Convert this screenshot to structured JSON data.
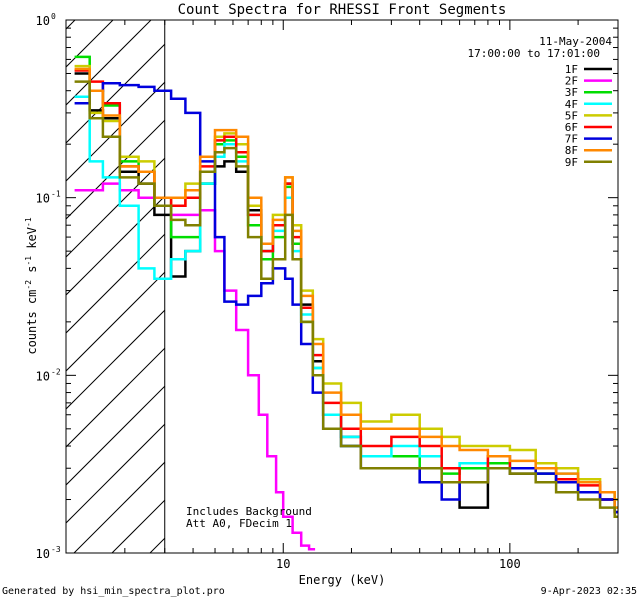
{
  "chart_data": {
    "type": "line",
    "title": "Count Spectra for RHESSI Front Segments",
    "xlabel": "Energy (keV)",
    "ylabel": "counts cm",
    "ylabel_sup1": "-2",
    "ylabel_mid": " s",
    "ylabel_sup2": "-1",
    "ylabel_end": " keV",
    "ylabel_sup3": "-1",
    "x_scale": "log",
    "y_scale": "log",
    "xlim": [
      1.1,
      300
    ],
    "ylim": [
      0.001,
      1
    ],
    "x_ticks": [
      {
        "v": 10,
        "label": "10"
      },
      {
        "v": 100,
        "label": "100"
      }
    ],
    "y_ticks": [
      {
        "v": 1,
        "label": "10",
        "exp": "0"
      },
      {
        "v": 0.1,
        "label": "10",
        "exp": "-1"
      },
      {
        "v": 0.01,
        "label": "10",
        "exp": "-2"
      },
      {
        "v": 0.001,
        "label": "10",
        "exp": "-3"
      }
    ],
    "hatch_upper_energy": 3,
    "date": "11-May-2004",
    "time_range": "17:00:00 to 17:01:00",
    "annotations": [
      "Includes Background",
      "Att A0, FDecim 1"
    ],
    "series": [
      {
        "name": "1F",
        "color": "#000000",
        "values": [
          [
            1.2,
            0.5
          ],
          [
            1.4,
            0.31
          ],
          [
            1.6,
            0.28
          ],
          [
            1.9,
            0.14
          ],
          [
            2.3,
            0.12
          ],
          [
            2.7,
            0.08
          ],
          [
            3.2,
            0.036
          ],
          [
            3.7,
            0.05
          ],
          [
            4.3,
            0.12
          ],
          [
            5.0,
            0.15
          ],
          [
            5.5,
            0.16
          ],
          [
            6.2,
            0.14
          ],
          [
            7.0,
            0.085
          ],
          [
            8.0,
            0.05
          ],
          [
            9.0,
            0.07
          ],
          [
            10.2,
            0.12
          ],
          [
            11.0,
            0.055
          ],
          [
            12.0,
            0.025
          ],
          [
            13.5,
            0.012
          ],
          [
            15,
            0.006
          ],
          [
            18,
            0.0045
          ],
          [
            22,
            0.003
          ],
          [
            30,
            0.003
          ],
          [
            40,
            0.0025
          ],
          [
            50,
            0.0025
          ],
          [
            60,
            0.0018
          ],
          [
            80,
            0.003
          ],
          [
            100,
            0.0028
          ],
          [
            130,
            0.0028
          ],
          [
            160,
            0.0025
          ],
          [
            200,
            0.0022
          ],
          [
            250,
            0.002
          ],
          [
            290,
            0.0017
          ]
        ]
      },
      {
        "name": "2F",
        "color": "#ff00ff",
        "values": [
          [
            1.2,
            0.11
          ],
          [
            1.4,
            0.11
          ],
          [
            1.6,
            0.12
          ],
          [
            1.9,
            0.11
          ],
          [
            2.3,
            0.1
          ],
          [
            2.7,
            0.09
          ],
          [
            3.2,
            0.08
          ],
          [
            3.7,
            0.08
          ],
          [
            4.3,
            0.085
          ],
          [
            5.0,
            0.05
          ],
          [
            5.5,
            0.03
          ],
          [
            6.2,
            0.018
          ],
          [
            7.0,
            0.01
          ],
          [
            7.8,
            0.006
          ],
          [
            8.5,
            0.0035
          ],
          [
            9.3,
            0.0022
          ],
          [
            10.0,
            0.0016
          ],
          [
            11.0,
            0.0013
          ],
          [
            12,
            0.0011
          ],
          [
            13,
            0.00105
          ]
        ]
      },
      {
        "name": "3F",
        "color": "#00dd00",
        "values": [
          [
            1.2,
            0.62
          ],
          [
            1.4,
            0.4
          ],
          [
            1.6,
            0.33
          ],
          [
            1.9,
            0.16
          ],
          [
            2.3,
            0.14
          ],
          [
            2.7,
            0.09
          ],
          [
            3.2,
            0.06
          ],
          [
            3.7,
            0.06
          ],
          [
            4.3,
            0.12
          ],
          [
            5.0,
            0.2
          ],
          [
            5.5,
            0.21
          ],
          [
            6.2,
            0.17
          ],
          [
            7.0,
            0.07
          ],
          [
            8.0,
            0.045
          ],
          [
            9.0,
            0.06
          ],
          [
            10.2,
            0.115
          ],
          [
            11.0,
            0.055
          ],
          [
            12,
            0.02
          ],
          [
            13.5,
            0.011
          ],
          [
            15,
            0.006
          ],
          [
            18,
            0.004
          ],
          [
            22,
            0.0035
          ],
          [
            30,
            0.0035
          ],
          [
            40,
            0.003
          ],
          [
            50,
            0.0028
          ],
          [
            60,
            0.003
          ],
          [
            80,
            0.0032
          ],
          [
            100,
            0.003
          ],
          [
            130,
            0.0028
          ],
          [
            160,
            0.0025
          ],
          [
            200,
            0.0025
          ],
          [
            250,
            0.0022
          ],
          [
            290,
            0.0018
          ]
        ]
      },
      {
        "name": "4F",
        "color": "#00ffff",
        "values": [
          [
            1.2,
            0.37
          ],
          [
            1.4,
            0.16
          ],
          [
            1.6,
            0.13
          ],
          [
            1.9,
            0.09
          ],
          [
            2.3,
            0.04
          ],
          [
            2.7,
            0.035
          ],
          [
            3.2,
            0.045
          ],
          [
            3.7,
            0.05
          ],
          [
            4.3,
            0.12
          ],
          [
            5.0,
            0.17
          ],
          [
            5.5,
            0.2
          ],
          [
            6.2,
            0.16
          ],
          [
            7.0,
            0.08
          ],
          [
            8.0,
            0.05
          ],
          [
            9.0,
            0.065
          ],
          [
            10.2,
            0.1
          ],
          [
            11.0,
            0.05
          ],
          [
            12,
            0.022
          ],
          [
            13.5,
            0.011
          ],
          [
            15,
            0.006
          ],
          [
            18,
            0.0045
          ],
          [
            22,
            0.0035
          ],
          [
            30,
            0.004
          ],
          [
            40,
            0.0035
          ],
          [
            50,
            0.003
          ],
          [
            60,
            0.0032
          ],
          [
            80,
            0.0035
          ],
          [
            100,
            0.003
          ],
          [
            130,
            0.003
          ],
          [
            160,
            0.0028
          ],
          [
            200,
            0.0025
          ],
          [
            250,
            0.0022
          ],
          [
            290,
            0.0018
          ]
        ]
      },
      {
        "name": "5F",
        "color": "#cccc00",
        "values": [
          [
            1.2,
            0.55
          ],
          [
            1.4,
            0.3
          ],
          [
            1.6,
            0.27
          ],
          [
            1.9,
            0.17
          ],
          [
            2.3,
            0.16
          ],
          [
            2.7,
            0.1
          ],
          [
            3.2,
            0.09
          ],
          [
            3.7,
            0.12
          ],
          [
            4.3,
            0.17
          ],
          [
            5.0,
            0.22
          ],
          [
            5.5,
            0.23
          ],
          [
            6.2,
            0.2
          ],
          [
            7.0,
            0.09
          ],
          [
            8.0,
            0.055
          ],
          [
            9.0,
            0.08
          ],
          [
            10.2,
            0.13
          ],
          [
            11.0,
            0.07
          ],
          [
            12,
            0.03
          ],
          [
            13.5,
            0.016
          ],
          [
            15,
            0.009
          ],
          [
            18,
            0.007
          ],
          [
            22,
            0.0055
          ],
          [
            30,
            0.006
          ],
          [
            40,
            0.005
          ],
          [
            50,
            0.0045
          ],
          [
            60,
            0.004
          ],
          [
            80,
            0.004
          ],
          [
            100,
            0.0038
          ],
          [
            130,
            0.0032
          ],
          [
            160,
            0.003
          ],
          [
            200,
            0.0026
          ],
          [
            250,
            0.0022
          ],
          [
            290,
            0.002
          ]
        ]
      },
      {
        "name": "6F",
        "color": "#ff0000",
        "values": [
          [
            1.2,
            0.52
          ],
          [
            1.4,
            0.45
          ],
          [
            1.6,
            0.34
          ],
          [
            1.9,
            0.15
          ],
          [
            2.3,
            0.14
          ],
          [
            2.7,
            0.1
          ],
          [
            3.2,
            0.09
          ],
          [
            3.7,
            0.1
          ],
          [
            4.3,
            0.15
          ],
          [
            5.0,
            0.21
          ],
          [
            5.5,
            0.22
          ],
          [
            6.2,
            0.18
          ],
          [
            7.0,
            0.08
          ],
          [
            8.0,
            0.05
          ],
          [
            9.0,
            0.07
          ],
          [
            10.2,
            0.12
          ],
          [
            11.0,
            0.06
          ],
          [
            12,
            0.024
          ],
          [
            13.5,
            0.013
          ],
          [
            15,
            0.007
          ],
          [
            18,
            0.005
          ],
          [
            22,
            0.004
          ],
          [
            30,
            0.0045
          ],
          [
            40,
            0.004
          ],
          [
            50,
            0.003
          ],
          [
            60,
            0.0025
          ],
          [
            80,
            0.0035
          ],
          [
            100,
            0.003
          ],
          [
            130,
            0.003
          ],
          [
            160,
            0.0026
          ],
          [
            200,
            0.0024
          ],
          [
            250,
            0.002
          ],
          [
            290,
            0.0017
          ]
        ]
      },
      {
        "name": "7F",
        "color": "#0000dd",
        "values": [
          [
            1.2,
            0.34
          ],
          [
            1.4,
            0.4
          ],
          [
            1.6,
            0.44
          ],
          [
            1.9,
            0.43
          ],
          [
            2.3,
            0.42
          ],
          [
            2.7,
            0.4
          ],
          [
            3.2,
            0.36
          ],
          [
            3.7,
            0.3
          ],
          [
            4.3,
            0.16
          ],
          [
            5.0,
            0.06
          ],
          [
            5.5,
            0.026
          ],
          [
            6.2,
            0.025
          ],
          [
            7.0,
            0.028
          ],
          [
            8.0,
            0.033
          ],
          [
            9.0,
            0.04
          ],
          [
            10.2,
            0.035
          ],
          [
            11.0,
            0.025
          ],
          [
            12,
            0.015
          ],
          [
            13.5,
            0.008
          ],
          [
            15,
            0.005
          ],
          [
            18,
            0.004
          ],
          [
            22,
            0.003
          ],
          [
            30,
            0.003
          ],
          [
            40,
            0.0025
          ],
          [
            50,
            0.002
          ],
          [
            60,
            0.0025
          ],
          [
            80,
            0.003
          ],
          [
            100,
            0.003
          ],
          [
            130,
            0.0028
          ],
          [
            160,
            0.0025
          ],
          [
            200,
            0.0022
          ],
          [
            250,
            0.002
          ],
          [
            290,
            0.0017
          ]
        ]
      },
      {
        "name": "8F",
        "color": "#ff8800",
        "values": [
          [
            1.2,
            0.53
          ],
          [
            1.4,
            0.4
          ],
          [
            1.6,
            0.29
          ],
          [
            1.9,
            0.15
          ],
          [
            2.3,
            0.14
          ],
          [
            2.7,
            0.1
          ],
          [
            3.2,
            0.1
          ],
          [
            3.7,
            0.11
          ],
          [
            4.3,
            0.17
          ],
          [
            5.0,
            0.24
          ],
          [
            5.5,
            0.24
          ],
          [
            6.2,
            0.22
          ],
          [
            7.0,
            0.1
          ],
          [
            8.0,
            0.055
          ],
          [
            9.0,
            0.075
          ],
          [
            10.2,
            0.13
          ],
          [
            11.0,
            0.065
          ],
          [
            12,
            0.028
          ],
          [
            13.5,
            0.015
          ],
          [
            15,
            0.008
          ],
          [
            18,
            0.006
          ],
          [
            22,
            0.005
          ],
          [
            30,
            0.005
          ],
          [
            40,
            0.0045
          ],
          [
            50,
            0.004
          ],
          [
            60,
            0.0038
          ],
          [
            80,
            0.0035
          ],
          [
            100,
            0.0033
          ],
          [
            130,
            0.003
          ],
          [
            160,
            0.0028
          ],
          [
            200,
            0.0025
          ],
          [
            250,
            0.0022
          ],
          [
            290,
            0.0018
          ]
        ]
      },
      {
        "name": "9F",
        "color": "#808000",
        "values": [
          [
            1.2,
            0.45
          ],
          [
            1.4,
            0.28
          ],
          [
            1.6,
            0.22
          ],
          [
            1.9,
            0.13
          ],
          [
            2.3,
            0.12
          ],
          [
            2.7,
            0.09
          ],
          [
            3.2,
            0.075
          ],
          [
            3.7,
            0.07
          ],
          [
            4.3,
            0.14
          ],
          [
            5.0,
            0.18
          ],
          [
            5.5,
            0.19
          ],
          [
            6.2,
            0.15
          ],
          [
            7.0,
            0.06
          ],
          [
            8.0,
            0.035
          ],
          [
            9.0,
            0.045
          ],
          [
            10.2,
            0.08
          ],
          [
            11.0,
            0.045
          ],
          [
            12,
            0.02
          ],
          [
            13.5,
            0.01
          ],
          [
            15,
            0.005
          ],
          [
            18,
            0.004
          ],
          [
            22,
            0.003
          ],
          [
            30,
            0.003
          ],
          [
            40,
            0.003
          ],
          [
            50,
            0.0025
          ],
          [
            60,
            0.0025
          ],
          [
            80,
            0.003
          ],
          [
            100,
            0.0028
          ],
          [
            130,
            0.0025
          ],
          [
            160,
            0.0022
          ],
          [
            200,
            0.002
          ],
          [
            250,
            0.0018
          ],
          [
            290,
            0.0016
          ]
        ]
      }
    ]
  },
  "footer": {
    "generated_by": "Generated by hsi_min_spectra_plot.pro",
    "timestamp": "9-Apr-2023 02:35"
  }
}
